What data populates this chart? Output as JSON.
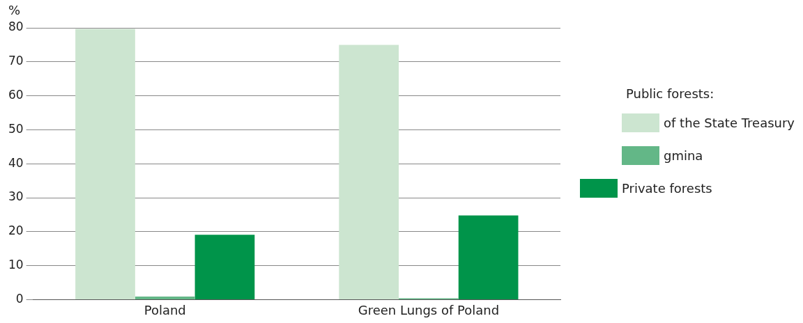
{
  "chart_data": {
    "type": "bar",
    "ylabel": "%",
    "legend_title": "Public forests:",
    "categories": [
      "Poland",
      "Green Lungs of Poland"
    ],
    "series": [
      {
        "name": "of the State Treasury",
        "color": "#cce5d0",
        "values": [
          79.7,
          75.0
        ]
      },
      {
        "name": "gmina",
        "color": "#63b787",
        "values": [
          0.9,
          0.4
        ]
      },
      {
        "name": "Private forests",
        "color": "#00944a",
        "values": [
          19.1,
          24.8
        ]
      }
    ],
    "ylim": [
      0,
      80
    ],
    "yticks": [
      0,
      10,
      20,
      30,
      40,
      50,
      60,
      70,
      80
    ],
    "grid": "y",
    "legend": "right"
  }
}
